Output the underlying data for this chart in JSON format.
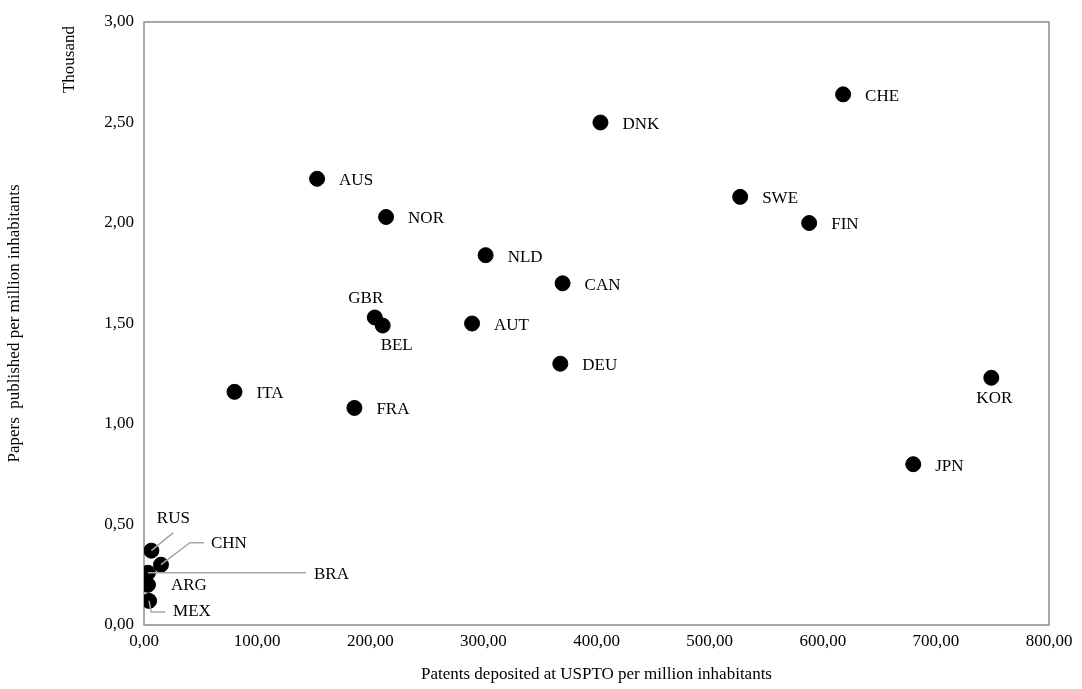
{
  "chart_data": {
    "type": "scatter",
    "xlabel": "Patents deposited at USPTO per million inhabitants",
    "ylabel": "Papers  published per million inhabitants",
    "marker": "circle",
    "grid": false,
    "legend": false,
    "series": [
      {
        "color": "#000000",
        "x": [
          153,
          214,
          302,
          204,
          211,
          290,
          370,
          403.5,
          618,
          527,
          588,
          80,
          186,
          368,
          749,
          680,
          6.5,
          15,
          3.5,
          3.5,
          4.5
        ],
        "values": [
          2.22,
          2.03,
          1.84,
          1.53,
          1.49,
          1.5,
          1.7,
          2.5,
          2.64,
          2.13,
          2.0,
          1.16,
          1.08,
          1.3,
          1.23,
          0.8,
          0.37,
          0.3,
          0.26,
          0.2,
          0.12
        ]
      }
    ],
    "xlim": [
      0,
      800
    ],
    "xticks": [
      {
        "value": 0,
        "label": "0,00"
      },
      {
        "value": 100,
        "label": "100,00"
      },
      {
        "value": 200,
        "label": "200,00"
      },
      {
        "value": 300,
        "label": "300,00"
      },
      {
        "value": 400,
        "label": "400,00"
      },
      {
        "value": 500,
        "label": "500,00"
      },
      {
        "value": 600,
        "label": "600,00"
      },
      {
        "value": 700,
        "label": "700,00"
      },
      {
        "value": 800,
        "label": "800,00"
      }
    ],
    "ylim": [
      0,
      3
    ],
    "yticks": [
      {
        "value": 0,
        "label": "0,00"
      },
      {
        "value": 0.5,
        "label": "0,50"
      },
      {
        "value": 1,
        "label": "1,00"
      },
      {
        "value": 1.5,
        "label": "1,50"
      },
      {
        "value": 2,
        "label": "2,00"
      },
      {
        "value": 2.5,
        "label": "2,50"
      },
      {
        "value": 3,
        "label": "3,00"
      }
    ],
    "annotations": [
      "Thousand",
      {
        "text": "AUS",
        "x": 153,
        "y": 2.22
      },
      {
        "text": "NOR",
        "x": 214,
        "y": 2.03
      },
      {
        "text": "NLD",
        "x": 302,
        "y": 1.84
      },
      {
        "text": "GBR",
        "x": 204,
        "y": 1.53
      },
      {
        "text": "BEL",
        "x": 211,
        "y": 1.49
      },
      {
        "text": "AUT",
        "x": 290,
        "y": 1.5
      },
      {
        "text": "CAN",
        "x": 370,
        "y": 1.7
      },
      {
        "text": "DNK",
        "x": 403.5,
        "y": 2.5
      },
      {
        "text": "CHE",
        "x": 618,
        "y": 2.64
      },
      {
        "text": "SWE",
        "x": 527,
        "y": 2.13
      },
      {
        "text": "FIN",
        "x": 588,
        "y": 2.0
      },
      {
        "text": "ITA",
        "x": 80,
        "y": 1.16
      },
      {
        "text": "FRA",
        "x": 186,
        "y": 1.08
      },
      {
        "text": "DEU",
        "x": 368,
        "y": 1.3
      },
      {
        "text": "KOR",
        "x": 749,
        "y": 1.23
      },
      {
        "text": "JPN",
        "x": 680,
        "y": 0.8
      },
      {
        "text": "RUS",
        "x": 6.5,
        "y": 0.37
      },
      {
        "text": "CHN",
        "x": 15,
        "y": 0.3
      },
      {
        "text": "BRA",
        "x": 3.5,
        "y": 0.26
      },
      {
        "text": "ARG",
        "x": 3.5,
        "y": 0.2
      },
      {
        "text": "MEX",
        "x": 4.5,
        "y": 0.12
      }
    ]
  }
}
